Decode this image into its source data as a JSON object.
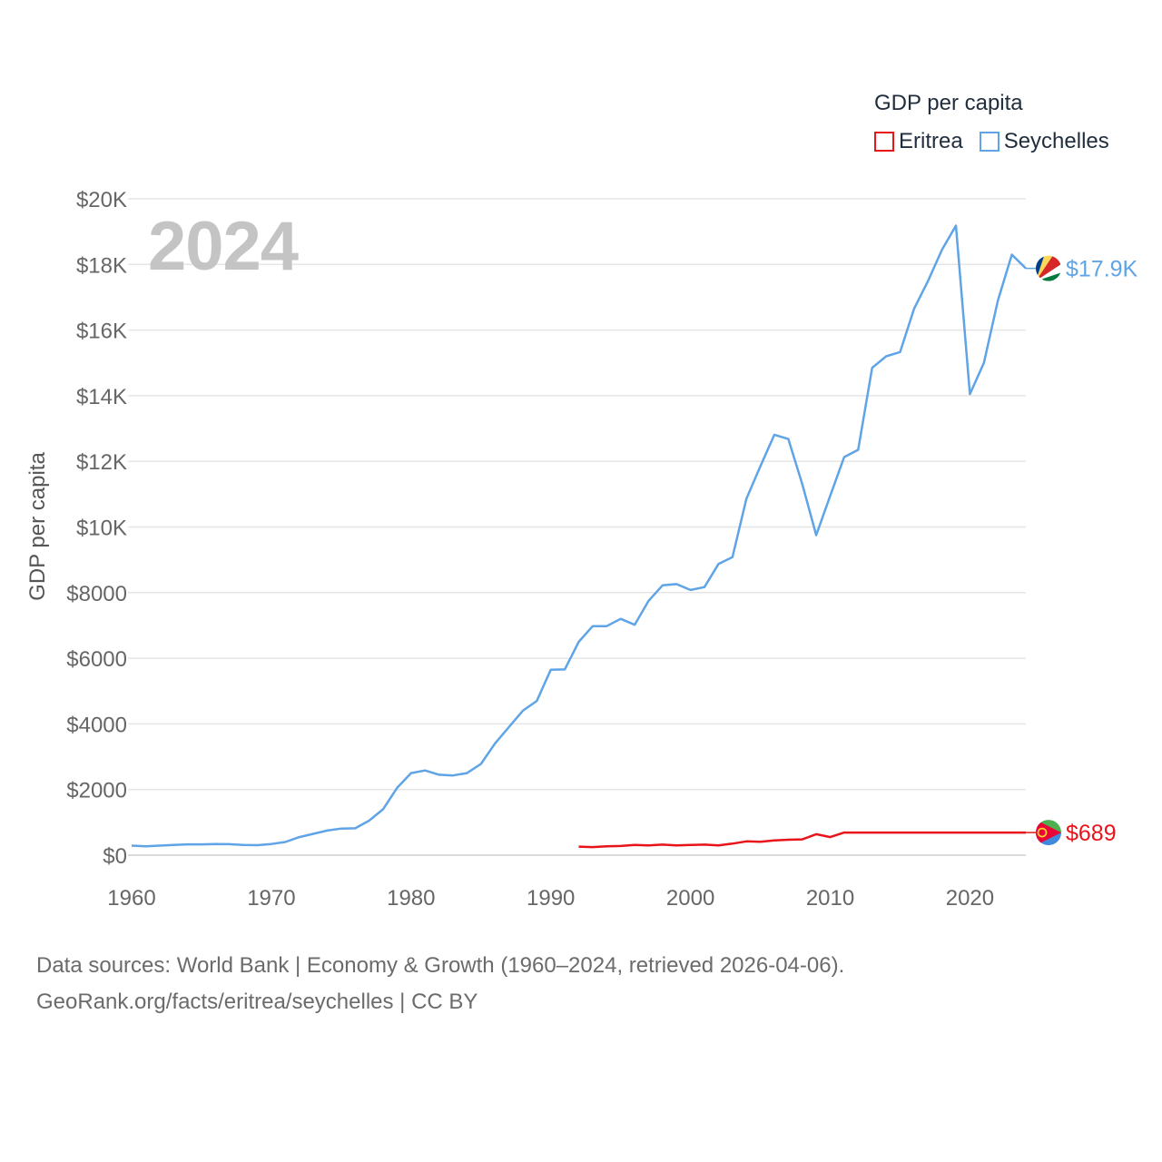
{
  "legend": {
    "title": "GDP per capita",
    "items": [
      {
        "name": "Eritrea",
        "color": "#e8141a"
      },
      {
        "name": "Seychelles",
        "color": "#5fa4e6"
      }
    ]
  },
  "year_display": "2024",
  "source": {
    "line1": "Data sources: World Bank | Economy & Growth (1960–2024, retrieved 2026-04-06).",
    "line2": "GeoRank.org/facts/eritrea/seychelles | CC BY"
  },
  "chart_data": {
    "type": "line",
    "title": "GDP per capita",
    "xlabel": "",
    "ylabel": "GDP per capita",
    "xlim": [
      1960,
      2024
    ],
    "ylim": [
      0,
      20000
    ],
    "x_ticks": [
      1960,
      1970,
      1980,
      1990,
      2000,
      2010,
      2020
    ],
    "y_ticks": [
      {
        "value": 0,
        "label": "$0"
      },
      {
        "value": 2000,
        "label": "$2000"
      },
      {
        "value": 4000,
        "label": "$4000"
      },
      {
        "value": 6000,
        "label": "$6000"
      },
      {
        "value": 8000,
        "label": "$8000"
      },
      {
        "value": 10000,
        "label": "$10K"
      },
      {
        "value": 12000,
        "label": "$12K"
      },
      {
        "value": 14000,
        "label": "$14K"
      },
      {
        "value": 16000,
        "label": "$16K"
      },
      {
        "value": 18000,
        "label": "$18K"
      },
      {
        "value": 20000,
        "label": "$20K"
      }
    ],
    "series": [
      {
        "name": "Seychelles",
        "color": "#5fa4e6",
        "end_label": "$17.9K",
        "flag": "seychelles-flag-icon",
        "x": [
          1960,
          1961,
          1962,
          1963,
          1964,
          1965,
          1966,
          1967,
          1968,
          1969,
          1970,
          1971,
          1972,
          1973,
          1974,
          1975,
          1976,
          1977,
          1978,
          1979,
          1980,
          1981,
          1982,
          1983,
          1984,
          1985,
          1986,
          1987,
          1988,
          1989,
          1990,
          1991,
          1992,
          1993,
          1994,
          1995,
          1996,
          1997,
          1998,
          1999,
          2000,
          2001,
          2002,
          2003,
          2004,
          2005,
          2006,
          2007,
          2008,
          2009,
          2010,
          2011,
          2012,
          2013,
          2014,
          2015,
          2016,
          2017,
          2018,
          2019,
          2020,
          2021,
          2022,
          2023,
          2024
        ],
        "values": [
          290,
          270,
          290,
          310,
          330,
          330,
          340,
          335,
          310,
          305,
          340,
          400,
          550,
          650,
          750,
          810,
          820,
          1050,
          1400,
          2050,
          2500,
          2580,
          2450,
          2430,
          2500,
          2780,
          3400,
          3900,
          4400,
          4700,
          5650,
          5660,
          6500,
          6980,
          6980,
          7200,
          7020,
          7750,
          8220,
          8260,
          8080,
          8170,
          8870,
          9080,
          10860,
          11850,
          12810,
          12680,
          11300,
          9750,
          10950,
          12130,
          12350,
          14850,
          15200,
          15330,
          16650,
          17500,
          18450,
          19180,
          14050,
          15000,
          16900,
          18300,
          17880
        ]
      },
      {
        "name": "Eritrea",
        "color": "#e8141a",
        "end_label": "$689",
        "flag": "eritrea-flag-icon",
        "x": [
          1992,
          1993,
          1994,
          1995,
          1996,
          1997,
          1998,
          1999,
          2000,
          2001,
          2002,
          2003,
          2004,
          2005,
          2006,
          2007,
          2008,
          2009,
          2010,
          2011,
          2024
        ],
        "values": [
          260,
          245,
          270,
          280,
          310,
          300,
          320,
          300,
          310,
          320,
          300,
          350,
          420,
          410,
          450,
          470,
          480,
          640,
          550,
          689,
          689
        ]
      }
    ]
  }
}
